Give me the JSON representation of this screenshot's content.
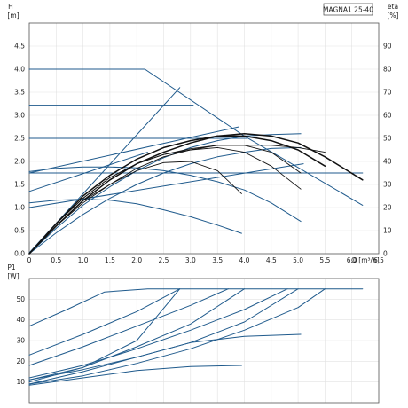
{
  "chart_data": [
    {
      "type": "line",
      "title": "MAGNA1 25-40",
      "xlabel": "Q [m³/h]",
      "ylabel": "H",
      "ylabel_unit": "[m]",
      "ylabel_right": "eta",
      "ylabel_right_unit": "[%]",
      "xlim": [
        0,
        6.5
      ],
      "ylim": [
        0,
        5.0
      ],
      "ylim_right": [
        0,
        100
      ],
      "grid": true,
      "xticks": [
        "0",
        "0.5",
        "1.0",
        "1.5",
        "2.0",
        "2.5",
        "3.0",
        "3.5",
        "4.0",
        "4.5",
        "5.0",
        "5.5",
        "6.0",
        "6.5"
      ],
      "yticks": [
        "0.0",
        "0.5",
        "1.0",
        "1.5",
        "2.0",
        "2.5",
        "3.0",
        "3.5",
        "4.0",
        "4.5"
      ],
      "yticks_right": [
        "0",
        "10",
        "20",
        "30",
        "40",
        "50",
        "60",
        "70",
        "80",
        "90"
      ],
      "colors": {
        "head": "#1f5a8c",
        "eta": "#111111"
      },
      "head_series": [
        {
          "x": [
            0,
            2.15,
            4.0,
            6.2
          ],
          "y": [
            4.0,
            4.0,
            2.55,
            1.05
          ]
        },
        {
          "x": [
            0,
            3.05
          ],
          "y": [
            3.22,
            3.22
          ]
        },
        {
          "x": [
            0,
            4.05
          ],
          "y": [
            2.5,
            2.5
          ]
        },
        {
          "x": [
            0,
            6.2
          ],
          "y": [
            1.75,
            1.75
          ]
        },
        {
          "x": [
            0,
            2.8
          ],
          "y": [
            0.02,
            3.6
          ]
        },
        {
          "x": [
            0,
            3.9
          ],
          "y": [
            1.75,
            2.75
          ]
        },
        {
          "x": [
            0,
            2.2
          ],
          "y": [
            1.35,
            2.2
          ]
        },
        {
          "x": [
            0,
            5.1
          ],
          "y": [
            1.0,
            1.95
          ]
        },
        {
          "x": [
            0,
            0.5,
            1.0,
            1.5,
            2.0,
            2.5,
            3.0,
            3.5,
            3.95
          ],
          "y": [
            1.1,
            1.16,
            1.18,
            1.16,
            1.08,
            0.95,
            0.8,
            0.62,
            0.44
          ]
        },
        {
          "x": [
            0,
            0.5,
            1.0,
            1.5,
            2.0,
            2.5,
            3.0,
            3.5,
            4.0,
            4.5,
            5.05
          ],
          "y": [
            1.78,
            1.85,
            1.88,
            1.88,
            1.86,
            1.8,
            1.7,
            1.56,
            1.38,
            1.1,
            0.7
          ]
        },
        {
          "x": [
            0,
            0.5,
            1.0,
            1.5,
            2.0,
            2.5,
            3.0,
            3.5,
            4.0,
            4.5,
            5.05
          ],
          "y": [
            0,
            0.45,
            0.85,
            1.2,
            1.5,
            1.75,
            1.95,
            2.1,
            2.2,
            2.28,
            2.3
          ]
        },
        {
          "x": [
            0,
            0.5,
            1.0,
            1.5,
            2.0,
            2.5,
            3.0,
            3.5,
            4.0,
            4.5,
            5.05
          ],
          "y": [
            0,
            0.55,
            1.05,
            1.45,
            1.8,
            2.08,
            2.3,
            2.45,
            2.55,
            2.58,
            2.6
          ]
        }
      ],
      "eta_series": [
        {
          "x": [
            0,
            0.5,
            1.0,
            1.5,
            2.0,
            2.5,
            3.0,
            3.5,
            3.95
          ],
          "y": [
            0,
            12,
            23,
            30,
            36,
            39.5,
            40,
            36,
            26
          ]
        },
        {
          "x": [
            0,
            0.5,
            1.0,
            1.5,
            2.0,
            2.5,
            3.0,
            3.5,
            4.0,
            4.5,
            5.05
          ],
          "y": [
            0,
            13,
            24,
            33,
            39,
            43,
            45,
            46,
            44,
            38,
            28
          ]
        },
        {
          "x": [
            0,
            0.5,
            1.0,
            1.5,
            2.0,
            2.5,
            3.0,
            3.5,
            4.0,
            4.5,
            5.05
          ],
          "y": [
            0,
            12,
            22,
            30,
            37,
            42,
            45,
            47,
            47,
            44,
            35
          ]
        },
        {
          "x": [
            0,
            0.5,
            1.0,
            1.5,
            2.0,
            2.5,
            3.0,
            3.5,
            4.0,
            4.5,
            5.0,
            5.5
          ],
          "y": [
            0,
            13,
            24,
            33,
            39,
            43,
            45.5,
            47,
            47,
            47,
            46,
            44
          ]
        },
        {
          "x": [
            0,
            0.5,
            1.0,
            1.5,
            2.0,
            2.5,
            3.0,
            3.5,
            4.0,
            4.5,
            5.0,
            5.5,
            6.2
          ],
          "y": [
            0,
            12,
            23,
            32,
            39,
            44,
            48,
            51,
            52,
            51,
            48,
            42,
            32
          ]
        },
        {
          "x": [
            0,
            0.5,
            1.0,
            1.5,
            2.0,
            2.5,
            3.0,
            3.5,
            4.0,
            4.5,
            5.0,
            5.5
          ],
          "y": [
            0,
            13,
            25,
            34,
            41,
            46,
            49,
            51,
            51,
            49,
            45,
            38
          ]
        }
      ]
    },
    {
      "type": "line",
      "xlabel": "",
      "ylabel": "P1",
      "ylabel_unit": "[W]",
      "xlim": [
        0,
        6.5
      ],
      "ylim": [
        0,
        60
      ],
      "grid": true,
      "yticks": [
        "10",
        "20",
        "30",
        "40",
        "50"
      ],
      "colors": {
        "power": "#1f5a8c"
      },
      "series": [
        {
          "x": [
            0,
            0.7,
            1.4,
            2.2,
            6.2
          ],
          "y": [
            37,
            45,
            53.5,
            55,
            55
          ]
        },
        {
          "x": [
            0,
            1.0,
            2.0,
            2.8
          ],
          "y": [
            23,
            33,
            44,
            55
          ]
        },
        {
          "x": [
            0,
            1.0,
            2.0,
            3.0,
            3.7
          ],
          "y": [
            18,
            27,
            37,
            47,
            55
          ]
        },
        {
          "x": [
            0,
            1.0,
            2.0,
            2.8
          ],
          "y": [
            10,
            17,
            30,
            55
          ]
        },
        {
          "x": [
            0,
            1.0,
            2.0,
            3.0,
            4.0,
            4.8
          ],
          "y": [
            12,
            18,
            26,
            35,
            45,
            55
          ]
        },
        {
          "x": [
            0,
            1.0,
            2.0,
            3.0,
            4.0
          ],
          "y": [
            11,
            17,
            27,
            38,
            55
          ]
        },
        {
          "x": [
            0,
            1.0,
            2.0,
            3.0,
            4.0,
            5.0,
            5.5
          ],
          "y": [
            9,
            13,
            19,
            26,
            35,
            46,
            55
          ]
        },
        {
          "x": [
            0,
            1.0,
            2.0,
            3.0,
            4.0,
            5.0
          ],
          "y": [
            11,
            16,
            22,
            29,
            39,
            55
          ]
        },
        {
          "x": [
            0,
            1.0,
            2.0,
            3.0,
            4.0,
            5.05
          ],
          "y": [
            9,
            15,
            22,
            29,
            32,
            33
          ]
        },
        {
          "x": [
            0,
            1.0,
            2.0,
            3.0,
            3.95
          ],
          "y": [
            8.5,
            12,
            15.5,
            17.5,
            18
          ]
        }
      ]
    }
  ]
}
